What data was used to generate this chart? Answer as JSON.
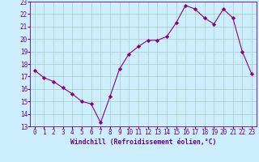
{
  "x": [
    0,
    1,
    2,
    3,
    4,
    5,
    6,
    7,
    8,
    9,
    10,
    11,
    12,
    13,
    14,
    15,
    16,
    17,
    18,
    19,
    20,
    21,
    22,
    23
  ],
  "y": [
    17.5,
    16.9,
    16.6,
    16.1,
    15.6,
    15.0,
    14.8,
    13.3,
    15.4,
    17.6,
    18.8,
    19.4,
    19.9,
    19.9,
    20.2,
    21.3,
    22.7,
    22.4,
    21.7,
    21.2,
    22.4,
    21.7,
    19.0,
    17.2
  ],
  "line_color": "#880088",
  "marker": "D",
  "marker_size": 2.2,
  "line_width": 0.8,
  "bg_color": "#cceeff",
  "grid_color": "#aaccbb",
  "xlabel": "Windchill (Refroidissement éolien,°C)",
  "xlabel_color": "#660099",
  "xlabel_fontsize": 5.8,
  "tick_label_color": "#660099",
  "tick_label_fontsize": 5.5,
  "ylim": [
    13,
    23
  ],
  "xlim": [
    -0.5,
    23.5
  ],
  "yticks": [
    13,
    14,
    15,
    16,
    17,
    18,
    19,
    20,
    21,
    22,
    23
  ],
  "xticks": [
    0,
    1,
    2,
    3,
    4,
    5,
    6,
    7,
    8,
    9,
    10,
    11,
    12,
    13,
    14,
    15,
    16,
    17,
    18,
    19,
    20,
    21,
    22,
    23
  ]
}
